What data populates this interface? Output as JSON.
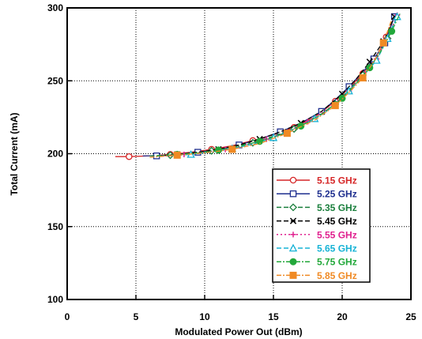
{
  "chart_data": {
    "type": "line",
    "title": "",
    "xlabel": "Modulated Power Out (dBm)",
    "ylabel": "Total Current (mA)",
    "xlim": [
      0,
      25
    ],
    "ylim": [
      100,
      300
    ],
    "xticks": [
      0,
      5,
      10,
      15,
      20,
      25
    ],
    "yticks": [
      100,
      150,
      200,
      250,
      300
    ],
    "grid": true,
    "legend_position": "bottom-right",
    "series": [
      {
        "name": "5.15 GHz",
        "color": "#d62728",
        "dash": "",
        "marker": "circle-open",
        "x": [
          3.5,
          4.5,
          6.0,
          7.5,
          9.0,
          10.5,
          12.0,
          13.5,
          15.0,
          16.5,
          18.0,
          19.5,
          20.5,
          21.5,
          22.5,
          23.2,
          23.8
        ],
        "y": [
          198,
          198,
          198.5,
          199.5,
          201,
          203,
          205.5,
          209,
          213,
          218,
          225,
          236,
          245,
          255,
          267,
          280,
          294
        ]
      },
      {
        "name": "5.25 GHz",
        "color": "#1f2f8f",
        "dash": "",
        "marker": "square-open",
        "x": [
          5.5,
          6.5,
          8.0,
          9.5,
          11.0,
          12.5,
          14.0,
          15.5,
          17.0,
          18.5,
          19.5,
          20.5,
          21.5,
          22.3,
          23.1,
          23.8
        ],
        "y": [
          198.5,
          198.5,
          199.5,
          201,
          203,
          206,
          210,
          215,
          221,
          229,
          237,
          246,
          256,
          265,
          276,
          294
        ]
      },
      {
        "name": "5.35 GHz",
        "color": "#1a7f3c",
        "dash": "6,3",
        "marker": "diamond-open",
        "x": [
          6.0,
          7.5,
          9.0,
          10.5,
          12.0,
          13.5,
          15.0,
          16.5,
          18.0,
          19.5,
          20.5,
          21.5,
          22.5,
          23.3,
          24.0
        ],
        "y": [
          198.5,
          199,
          200.5,
          202,
          204.5,
          207.5,
          212,
          217,
          224,
          234,
          244,
          254,
          265,
          279,
          295
        ]
      },
      {
        "name": "5.45 GHz",
        "color": "#000000",
        "dash": "6,3",
        "marker": "x",
        "x": [
          6.5,
          8.0,
          9.5,
          11.0,
          12.5,
          14.0,
          15.5,
          17.0,
          18.5,
          20.0,
          21.0,
          22.0,
          23.0,
          23.8
        ],
        "y": [
          198.5,
          199.5,
          201,
          203,
          206,
          210,
          215,
          221,
          229,
          241,
          251,
          263,
          277,
          294
        ]
      },
      {
        "name": "5.55 GHz",
        "color": "#e0208f",
        "dash": "2,3",
        "marker": "plus",
        "x": [
          7.0,
          8.5,
          10.0,
          11.5,
          13.0,
          14.5,
          16.0,
          17.5,
          19.0,
          20.5,
          21.5,
          22.5,
          23.3,
          24.0
        ],
        "y": [
          198.5,
          199.5,
          201,
          203,
          206,
          210,
          215,
          222,
          231,
          243,
          254,
          265,
          279,
          295
        ]
      },
      {
        "name": "5.65 GHz",
        "color": "#17b3d6",
        "dash": "6,3",
        "marker": "triangle-open",
        "x": [
          7.5,
          9.0,
          10.5,
          12.0,
          13.5,
          15.0,
          16.5,
          18.0,
          19.5,
          20.5,
          21.5,
          22.5,
          23.3,
          24.0
        ],
        "y": [
          198.5,
          199.5,
          201,
          203.5,
          206.5,
          211,
          217,
          224,
          233,
          243,
          253,
          264,
          279,
          294
        ]
      },
      {
        "name": "5.75 GHz",
        "color": "#22a83a",
        "dash": "6,2,2,2",
        "marker": "circle-filled",
        "x": [
          6.5,
          8.0,
          9.5,
          11.0,
          12.5,
          14.0,
          15.5,
          17.0,
          18.5,
          20.0,
          21.0,
          22.0,
          22.8,
          23.6,
          24.2
        ],
        "y": [
          198.5,
          199.5,
          200.5,
          202.5,
          205,
          208.5,
          213,
          219,
          227,
          238,
          248,
          259,
          270,
          284,
          296
        ]
      },
      {
        "name": "5.85 GHz",
        "color": "#f08a24",
        "dash": "6,2,2,2",
        "marker": "square-filled",
        "x": [
          6.0,
          8.0,
          10.0,
          12.0,
          14.0,
          16.0,
          18.0,
          19.5,
          20.5,
          21.5,
          22.3,
          23.0,
          23.6
        ],
        "y": [
          197.5,
          199,
          200.5,
          203,
          207,
          214,
          223,
          233,
          242,
          252,
          263,
          276,
          292
        ]
      }
    ]
  }
}
